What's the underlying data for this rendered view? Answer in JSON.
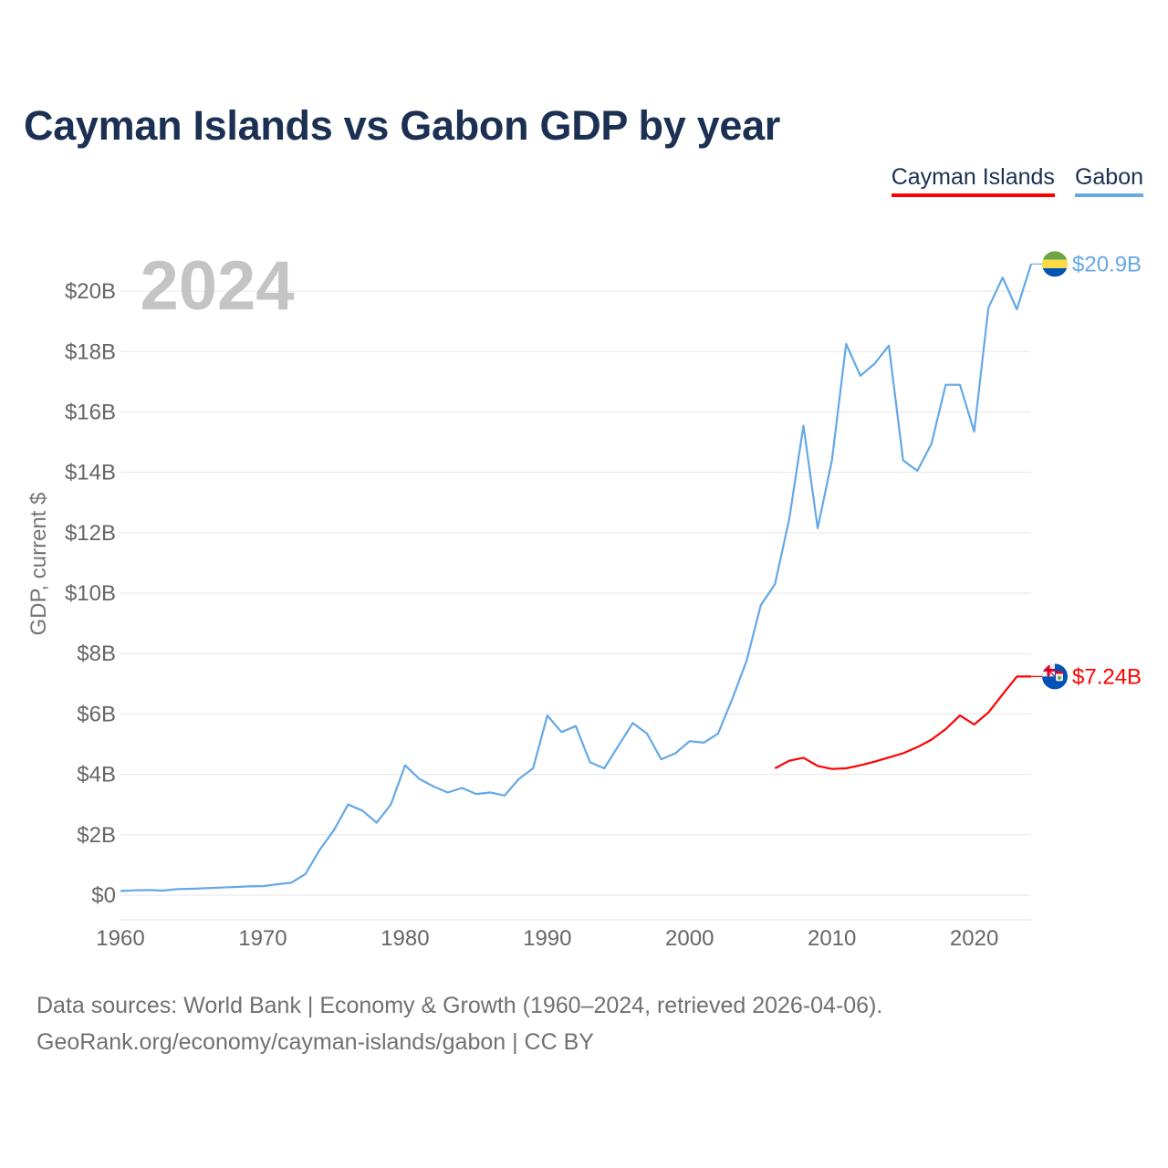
{
  "title": "Cayman Islands vs Gabon GDP by year",
  "legend": [
    {
      "label": "Cayman Islands",
      "color": "#ff0000"
    },
    {
      "label": "Gabon",
      "color": "#64a8e6"
    }
  ],
  "source": {
    "line1": "Data sources: World Bank | Economy & Growth (1960–2024, retrieved 2026-04-06).",
    "line2": "GeoRank.org/economy/cayman-islands/gabon | CC BY"
  },
  "chart_data": {
    "type": "line",
    "title": "Cayman Islands vs Gabon GDP by year",
    "year_watermark": "2024",
    "xlabel": "",
    "ylabel": "GDP, current $",
    "xlim": [
      1960,
      2024
    ],
    "ylim": [
      0,
      21
    ],
    "y_unit": "billion USD",
    "x_ticks": [
      1960,
      1970,
      1980,
      1990,
      2000,
      2010,
      2020
    ],
    "y_ticks": [
      {
        "value": 0,
        "label": "$0"
      },
      {
        "value": 2,
        "label": "$2B"
      },
      {
        "value": 4,
        "label": "$4B"
      },
      {
        "value": 6,
        "label": "$6B"
      },
      {
        "value": 8,
        "label": "$8B"
      },
      {
        "value": 10,
        "label": "$10B"
      },
      {
        "value": 12,
        "label": "$12B"
      },
      {
        "value": 14,
        "label": "$14B"
      },
      {
        "value": 16,
        "label": "$16B"
      },
      {
        "value": 18,
        "label": "$18B"
      },
      {
        "value": 20,
        "label": "$20B"
      }
    ],
    "grid": true,
    "series": [
      {
        "name": "Gabon",
        "color": "#64a8e6",
        "flag": "gabon-flag",
        "end_label": "$20.9B",
        "x": [
          1960,
          1961,
          1962,
          1963,
          1964,
          1965,
          1966,
          1967,
          1968,
          1969,
          1970,
          1971,
          1972,
          1973,
          1974,
          1975,
          1976,
          1977,
          1978,
          1979,
          1980,
          1981,
          1982,
          1983,
          1984,
          1985,
          1986,
          1987,
          1988,
          1989,
          1990,
          1991,
          1992,
          1993,
          1994,
          1995,
          1996,
          1997,
          1998,
          1999,
          2000,
          2001,
          2002,
          2003,
          2004,
          2005,
          2006,
          2007,
          2008,
          2009,
          2010,
          2011,
          2012,
          2013,
          2014,
          2015,
          2016,
          2017,
          2018,
          2019,
          2020,
          2021,
          2022,
          2023,
          2024
        ],
        "values": [
          0.14,
          0.16,
          0.17,
          0.15,
          0.2,
          0.21,
          0.23,
          0.25,
          0.27,
          0.29,
          0.3,
          0.36,
          0.41,
          0.7,
          1.5,
          2.15,
          3.0,
          2.8,
          2.4,
          3.0,
          4.3,
          3.85,
          3.6,
          3.4,
          3.55,
          3.35,
          3.4,
          3.3,
          3.85,
          4.2,
          5.95,
          5.4,
          5.6,
          4.4,
          4.2,
          4.95,
          5.7,
          5.35,
          4.5,
          4.7,
          5.1,
          5.05,
          5.35,
          6.5,
          7.75,
          9.6,
          10.3,
          12.45,
          15.55,
          12.15,
          14.4,
          18.25,
          17.2,
          17.6,
          18.2,
          14.4,
          14.05,
          14.95,
          16.9,
          16.9,
          15.35,
          19.45,
          20.45,
          19.4,
          20.9
        ]
      },
      {
        "name": "Cayman Islands",
        "color": "#ff0000",
        "flag": "cayman-islands-flag",
        "end_label": "$7.24B",
        "x": [
          2006,
          2007,
          2008,
          2009,
          2010,
          2011,
          2012,
          2013,
          2014,
          2015,
          2016,
          2017,
          2018,
          2019,
          2020,
          2021,
          2022,
          2023,
          2024
        ],
        "values": [
          4.2,
          4.45,
          4.55,
          4.28,
          4.18,
          4.2,
          4.3,
          4.42,
          4.56,
          4.7,
          4.9,
          5.15,
          5.5,
          5.95,
          5.65,
          6.05,
          6.65,
          7.24,
          7.24
        ]
      }
    ]
  }
}
